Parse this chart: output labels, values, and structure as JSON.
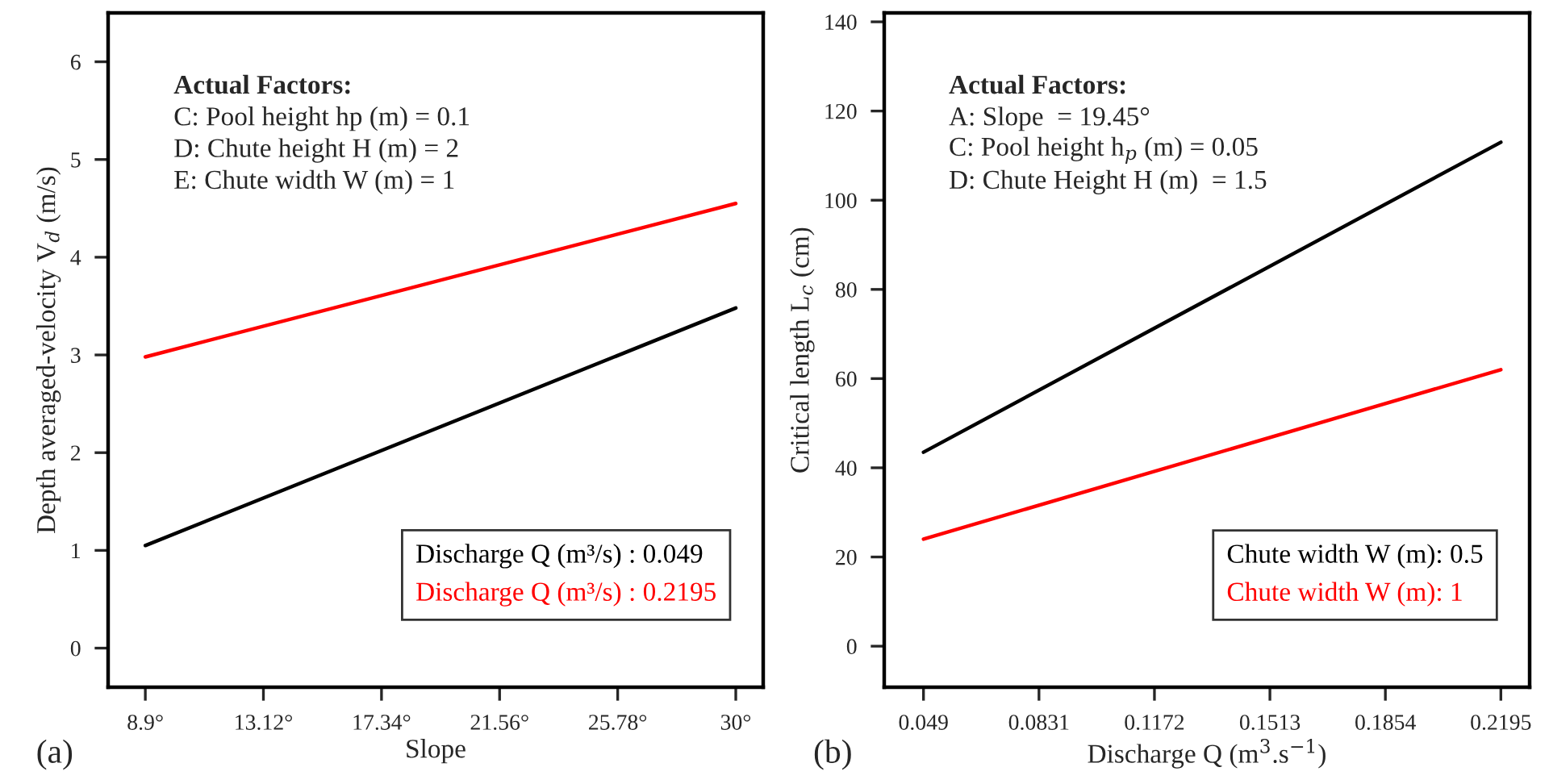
{
  "chart_data": [
    {
      "type": "line",
      "xlabel": "Slope",
      "ylabel": "Depth averaged-velocity V$_{d}$ (m/s)",
      "x": [
        8.9,
        30
      ],
      "series": [
        {
          "name": "Discharge Q (m³/s) : 0.049",
          "color": "#000000",
          "values": [
            1.05,
            3.48
          ]
        },
        {
          "name": "Discharge Q (m³/s) : 0.2195",
          "color": "#ff0000",
          "values": [
            2.98,
            4.55
          ]
        }
      ],
      "xlim": [
        7.57,
        30.98
      ],
      "ylim": [
        -0.4,
        6.5
      ],
      "xticks": [
        {
          "value": 8.9,
          "label": "8.9°"
        },
        {
          "value": 13.12,
          "label": "13.12°"
        },
        {
          "value": 17.34,
          "label": "17.34°"
        },
        {
          "value": 21.56,
          "label": "21.56°"
        },
        {
          "value": 25.78,
          "label": "25.78°"
        },
        {
          "value": 30,
          "label": "30°"
        }
      ],
      "yticks": [
        0,
        1,
        2,
        3,
        4,
        5,
        6
      ],
      "grid": false,
      "legend": "bottom right",
      "marker": "none",
      "line_style": "solid",
      "annotations": [
        "(a)",
        "Actual Factors:",
        "C: Pool height hp (m) = 0.1",
        "D: Chute height H (m) = 2",
        "E: Chute width W (m) = 1"
      ]
    },
    {
      "type": "line",
      "xlabel": "Discharge Q (m$^{3}$.s$^{−1}$)",
      "ylabel": "Critical length L$_{c}$ (cm)",
      "x": [
        0.049,
        0.2195
      ],
      "series": [
        {
          "name": "Chute width W (m): 0.5",
          "color": "#000000",
          "values": [
            43.5,
            113
          ]
        },
        {
          "name": "Chute width W (m): 1",
          "color": "#ff0000",
          "values": [
            24,
            62
          ]
        }
      ],
      "xlim": [
        0.0374,
        0.228
      ],
      "ylim": [
        -9.2,
        142
      ],
      "xticks": [
        0.049,
        0.0831,
        0.1172,
        0.1513,
        0.1854,
        0.2195
      ],
      "yticks": [
        0,
        20,
        40,
        60,
        80,
        100,
        120,
        140
      ],
      "grid": false,
      "legend": "bottom right",
      "marker": "none",
      "line_style": "solid",
      "annotations": [
        "(b)",
        "Actual Factors:",
        "A: Slope  = 19.45°",
        "C: Pool height h$_{p}$ (m) = 0.05",
        "D: Chute Height H (m)  = 1.5"
      ]
    }
  ]
}
